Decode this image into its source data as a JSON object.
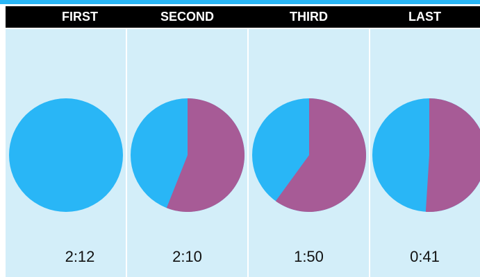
{
  "colors": {
    "accent_blue": "#29b6f6",
    "purple": "#a75b96",
    "panel_bg": "#d3eef9",
    "header_bg": "#000000"
  },
  "chart_data": {
    "type": "pie",
    "columns": [
      "FIRST",
      "SECOND",
      "THIRD",
      "LAST"
    ],
    "values": [
      "2:12",
      "2:10",
      "1:50",
      "0:41"
    ],
    "pies": [
      {
        "label": "FIRST",
        "blue_fraction": 1.0,
        "purple_fraction": 0.0
      },
      {
        "label": "SECOND",
        "blue_fraction": 0.44,
        "purple_fraction": 0.56
      },
      {
        "label": "THIRD",
        "blue_fraction": 0.4,
        "purple_fraction": 0.6
      },
      {
        "label": "LAST",
        "blue_fraction": 0.49,
        "purple_fraction": 0.51
      }
    ]
  }
}
